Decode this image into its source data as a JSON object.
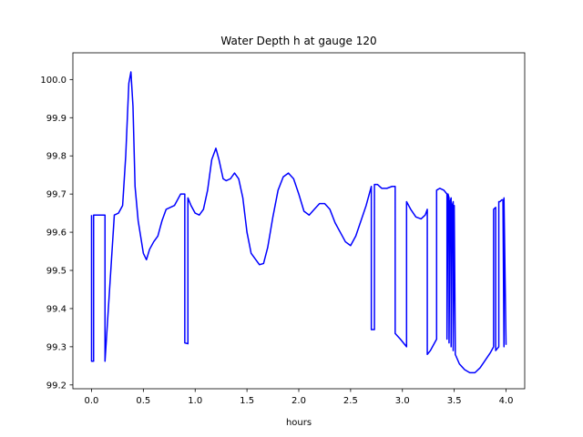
{
  "chart_data": {
    "type": "line",
    "title": "Water Depth h at gauge 120",
    "xlabel": "hours",
    "ylabel": "",
    "xlim": [
      -0.18,
      4.18
    ],
    "ylim": [
      99.19,
      100.07
    ],
    "xticks": [
      0.0,
      0.5,
      1.0,
      1.5,
      2.0,
      2.5,
      3.0,
      3.5,
      4.0
    ],
    "xtick_labels": [
      "0.0",
      "0.5",
      "1.0",
      "1.5",
      "2.0",
      "2.5",
      "3.0",
      "3.5",
      "4.0"
    ],
    "yticks": [
      99.2,
      99.3,
      99.4,
      99.5,
      99.6,
      99.7,
      99.8,
      99.9,
      100.0
    ],
    "ytick_labels": [
      "99.2",
      "99.3",
      "99.4",
      "99.5",
      "99.6",
      "99.7",
      "99.8",
      "99.9",
      "100.0"
    ],
    "grid": false,
    "legend": "none",
    "series": [
      {
        "color": "#0000ff",
        "x": [
          0.0,
          0.0,
          0.02,
          0.02,
          0.13,
          0.13,
          0.22,
          0.26,
          0.3,
          0.33,
          0.36,
          0.38,
          0.4,
          0.42,
          0.45,
          0.5,
          0.53,
          0.56,
          0.6,
          0.64,
          0.68,
          0.72,
          0.76,
          0.8,
          0.86,
          0.9,
          0.9,
          0.93,
          0.93,
          0.96,
          1.0,
          1.04,
          1.08,
          1.12,
          1.16,
          1.2,
          1.23,
          1.27,
          1.3,
          1.34,
          1.38,
          1.42,
          1.46,
          1.5,
          1.54,
          1.58,
          1.62,
          1.66,
          1.7,
          1.75,
          1.8,
          1.85,
          1.9,
          1.95,
          2.0,
          2.05,
          2.1,
          2.15,
          2.2,
          2.25,
          2.3,
          2.35,
          2.4,
          2.45,
          2.5,
          2.55,
          2.6,
          2.65,
          2.7,
          2.7,
          2.73,
          2.73,
          2.76,
          2.8,
          2.85,
          2.9,
          2.93,
          2.93,
          2.98,
          3.04,
          3.04,
          3.08,
          3.13,
          3.18,
          3.22,
          3.24,
          3.24,
          3.27,
          3.33,
          3.33,
          3.36,
          3.4,
          3.43,
          3.43,
          3.44,
          3.45,
          3.45,
          3.46,
          3.47,
          3.47,
          3.48,
          3.49,
          3.49,
          3.5,
          3.51,
          3.51,
          3.55,
          3.6,
          3.65,
          3.7,
          3.75,
          3.8,
          3.85,
          3.88,
          3.88,
          3.9,
          3.9,
          3.93,
          3.93,
          3.94,
          3.96,
          3.97,
          3.98,
          3.98,
          4.0
        ],
        "y": [
          99.645,
          99.262,
          99.262,
          99.645,
          99.645,
          99.262,
          99.645,
          99.65,
          99.67,
          99.8,
          99.99,
          100.02,
          99.93,
          99.72,
          99.63,
          99.545,
          99.528,
          99.555,
          99.575,
          99.59,
          99.63,
          99.66,
          99.665,
          99.67,
          99.7,
          99.7,
          99.31,
          99.308,
          99.69,
          99.67,
          99.65,
          99.645,
          99.66,
          99.71,
          99.79,
          99.82,
          99.79,
          99.74,
          99.735,
          99.74,
          99.755,
          99.74,
          99.69,
          99.6,
          99.545,
          99.53,
          99.515,
          99.518,
          99.56,
          99.64,
          99.71,
          99.745,
          99.755,
          99.74,
          99.7,
          99.655,
          99.645,
          99.66,
          99.675,
          99.675,
          99.66,
          99.625,
          99.6,
          99.575,
          99.565,
          99.59,
          99.63,
          99.67,
          99.72,
          99.345,
          99.345,
          99.725,
          99.725,
          99.715,
          99.715,
          99.72,
          99.72,
          99.335,
          99.32,
          99.3,
          99.68,
          99.66,
          99.64,
          99.635,
          99.645,
          99.66,
          99.28,
          99.29,
          99.32,
          99.71,
          99.715,
          99.71,
          99.7,
          99.32,
          99.7,
          99.69,
          99.31,
          99.68,
          99.69,
          99.3,
          99.67,
          99.68,
          99.29,
          99.67,
          99.3,
          99.28,
          99.255,
          99.24,
          99.232,
          99.232,
          99.245,
          99.265,
          99.285,
          99.3,
          99.66,
          99.665,
          99.29,
          99.3,
          99.68,
          99.68,
          99.685,
          99.685,
          99.3,
          99.69,
          99.305
        ]
      }
    ]
  }
}
